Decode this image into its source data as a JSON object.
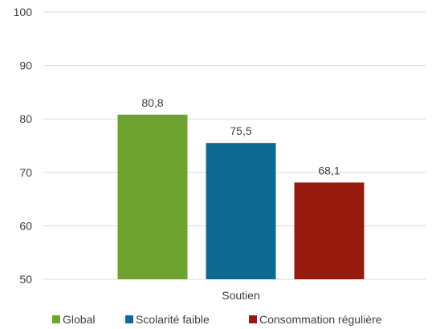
{
  "chart_data": {
    "type": "bar",
    "categories": [
      "Soutien"
    ],
    "series": [
      {
        "name": "Global",
        "values": [
          80.8
        ],
        "value_labels": [
          "80,8"
        ],
        "color": "#6fa32f"
      },
      {
        "name": "Scolarité faible",
        "values": [
          75.5
        ],
        "value_labels": [
          "75,5"
        ],
        "color": "#0f6a93"
      },
      {
        "name": "Consommation régulière",
        "values": [
          68.1
        ],
        "value_labels": [
          "68,1"
        ],
        "color": "#961a0e"
      }
    ],
    "ylim": [
      50,
      100
    ],
    "y_ticks": [
      {
        "value": 50,
        "label": "50"
      },
      {
        "value": 60,
        "label": "60"
      },
      {
        "value": 70,
        "label": "70"
      },
      {
        "value": 80,
        "label": "80"
      },
      {
        "value": 90,
        "label": "90"
      },
      {
        "value": 100,
        "label": "100"
      }
    ],
    "grid": true,
    "gridline_color": "#d9d9d9",
    "legend_position": "bottom",
    "title": "",
    "xlabel": "",
    "ylabel": ""
  }
}
